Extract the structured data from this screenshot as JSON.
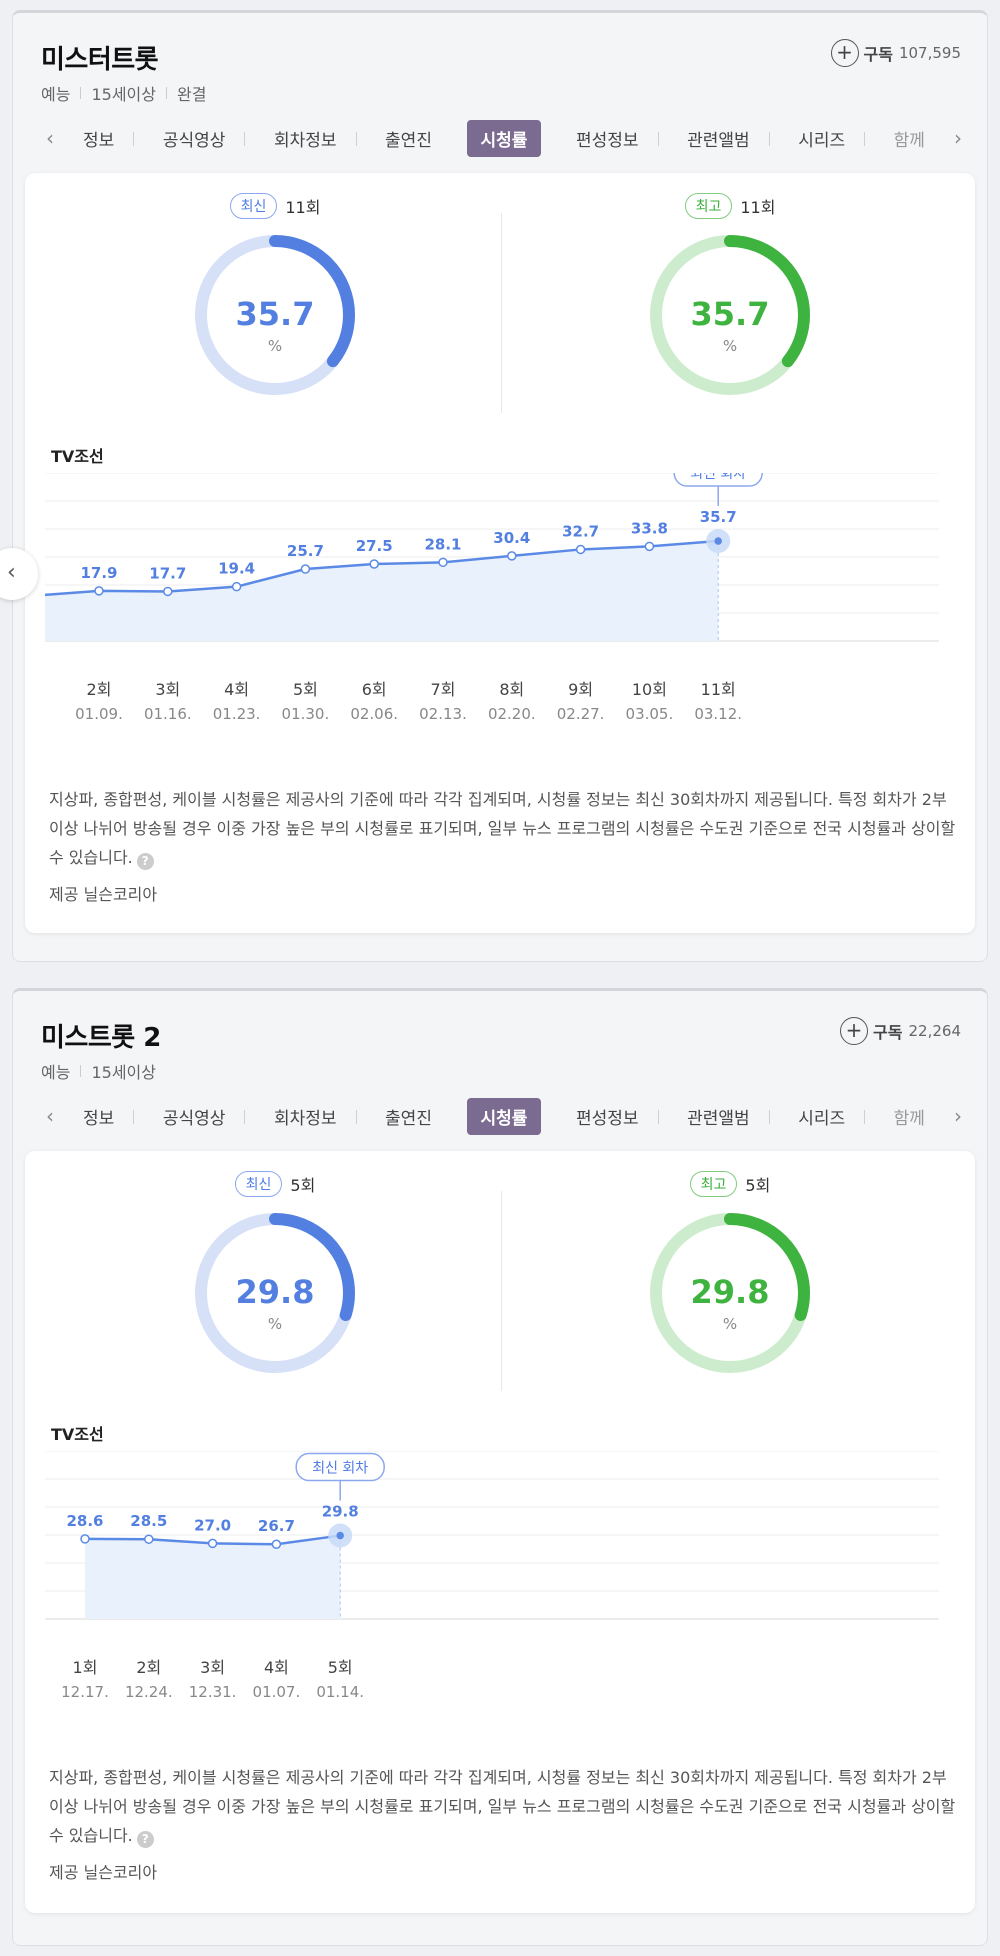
{
  "programs": [
    {
      "title": "미스터트롯",
      "meta": [
        "예능",
        "15세이상",
        "완결"
      ],
      "subscribe_label": "구독",
      "subscribe_count": "107,595",
      "tabs": [
        "정보",
        "공식영상",
        "회차정보",
        "출연진",
        "시청률",
        "편성정보",
        "관련앨범",
        "시리즈",
        "함께"
      ],
      "active_tab": "시청률",
      "latest": {
        "badge": "최신",
        "episode": "11회",
        "value": "35.7",
        "unit": "%"
      },
      "best": {
        "badge": "최고",
        "episode": "11회",
        "value": "35.7",
        "unit": "%"
      },
      "channel": "TV조선",
      "notice": "지상파, 종합편성, 케이블 시청률은 제공사의 기준에 따라 각각 집계되며, 시청률 정보는 최신 30회차까지 제공됩니다. 특정 회차가 2부이상 나뉘어 방송될 경우 이중 가장 높은 부의 시청률로 표기되며, 일부 뉴스 프로그램의 시청률은 수도권 기준으로 전국 시청률과 상이할 수 있습니다.",
      "help_icon": "question-icon",
      "provider": "제공 닐슨코리아"
    },
    {
      "title": "미스트롯 2",
      "meta": [
        "예능",
        "15세이상"
      ],
      "subscribe_label": "구독",
      "subscribe_count": "22,264",
      "tabs": [
        "정보",
        "공식영상",
        "회차정보",
        "출연진",
        "시청률",
        "편성정보",
        "관련앨범",
        "시리즈",
        "함께"
      ],
      "active_tab": "시청률",
      "latest": {
        "badge": "최신",
        "episode": "5회",
        "value": "29.8",
        "unit": "%"
      },
      "best": {
        "badge": "최고",
        "episode": "5회",
        "value": "29.8",
        "unit": "%"
      },
      "channel": "TV조선",
      "notice": "지상파, 종합편성, 케이블 시청률은 제공사의 기준에 따라 각각 집계되며, 시청률 정보는 최신 30회차까지 제공됩니다. 특정 회차가 2부이상 나뉘어 방송될 경우 이중 가장 높은 부의 시청률로 표기되며, 일부 뉴스 프로그램의 시청률은 수도권 기준으로 전국 시청률과 상이할 수 있습니다.",
      "help_icon": "question-icon",
      "provider": "제공 닐슨코리아"
    }
  ],
  "colors": {
    "latest": "#5380e0",
    "best": "#3fb33f",
    "active_tab": "#7b6b90"
  },
  "prev_icon": "chevron-left-icon",
  "chart_data": [
    {
      "type": "line",
      "episodes": [
        "2회",
        "3회",
        "4회",
        "5회",
        "6회",
        "7회",
        "8회",
        "9회",
        "10회",
        "11회"
      ],
      "dates": [
        "01.09.",
        "01.16.",
        "01.23.",
        "01.30.",
        "02.06.",
        "02.13.",
        "02.20.",
        "02.27.",
        "03.05.",
        "03.12."
      ],
      "values": [
        17.9,
        17.7,
        19.4,
        25.7,
        27.5,
        28.1,
        30.4,
        32.7,
        33.8,
        35.7
      ],
      "labels": [
        "17.9",
        "17.7",
        "19.4",
        "25.7",
        "27.5",
        "28.1",
        "30.4",
        "32.7",
        "33.8",
        "35.7"
      ],
      "latest_marker": "최신 회차"
    },
    {
      "type": "line",
      "episodes": [
        "1회",
        "2회",
        "3회",
        "4회",
        "5회"
      ],
      "dates": [
        "12.17.",
        "12.24.",
        "12.31.",
        "01.07.",
        "01.14."
      ],
      "values": [
        28.6,
        28.5,
        27.0,
        26.7,
        29.8
      ],
      "labels": [
        "28.6",
        "28.5",
        "27.0",
        "26.7",
        "29.8"
      ],
      "latest_marker": "최신 회차"
    }
  ]
}
